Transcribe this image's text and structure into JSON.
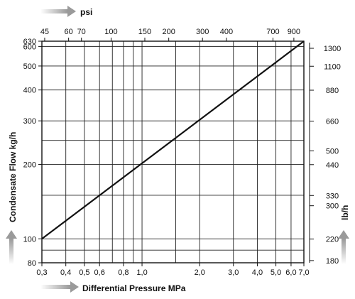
{
  "chart_data": {
    "type": "line",
    "xlabel": "Differential Pressure MPa",
    "x2label": "psi",
    "ylabel": "Condensate Flow kg/h",
    "y2label": "lb/h",
    "x_scale": "log",
    "y_scale": "log",
    "xlim": [
      0.3,
      7.0
    ],
    "ylim": [
      80,
      630
    ],
    "x_ticks": [
      {
        "v": 0.3,
        "label": "0,3"
      },
      {
        "v": 0.4,
        "label": "0,4"
      },
      {
        "v": 0.5,
        "label": "0,5"
      },
      {
        "v": 0.6,
        "label": "0,6"
      },
      {
        "v": 0.8,
        "label": "0,8"
      },
      {
        "v": 1.0,
        "label": "1,0"
      },
      {
        "v": 2.0,
        "label": "2,0"
      },
      {
        "v": 3.0,
        "label": "3,0"
      },
      {
        "v": 4.0,
        "label": "4,0"
      },
      {
        "v": 5.0,
        "label": "5,0"
      },
      {
        "v": 6.0,
        "label": "6,0"
      },
      {
        "v": 7.0,
        "label": "7,0"
      }
    ],
    "x_gridlines": [
      0.3,
      0.4,
      0.5,
      0.6,
      0.7,
      0.8,
      0.9,
      1.0,
      1.5,
      2.0,
      3.0,
      4.0,
      5.0,
      6.0,
      7.0
    ],
    "x2_ticks": [
      {
        "v": 45,
        "label": "45"
      },
      {
        "v": 60,
        "label": "60"
      },
      {
        "v": 70,
        "label": "70"
      },
      {
        "v": 100,
        "label": "100"
      },
      {
        "v": 150,
        "label": "150"
      },
      {
        "v": 200,
        "label": "200"
      },
      {
        "v": 300,
        "label": "300"
      },
      {
        "v": 400,
        "label": "400"
      },
      {
        "v": 700,
        "label": "700"
      },
      {
        "v": 900,
        "label": "900"
      }
    ],
    "y_ticks": [
      {
        "v": 80,
        "label": "80"
      },
      {
        "v": 100,
        "label": "100"
      },
      {
        "v": 200,
        "label": "200"
      },
      {
        "v": 300,
        "label": "300"
      },
      {
        "v": 400,
        "label": "400"
      },
      {
        "v": 500,
        "label": "500"
      },
      {
        "v": 600,
        "label": "600"
      },
      {
        "v": 630,
        "label": "630"
      }
    ],
    "y_gridlines": [
      90,
      100,
      150,
      200,
      250,
      300,
      400,
      500,
      600
    ],
    "y2_ticks": [
      {
        "v": 1300,
        "label": "1300"
      },
      {
        "v": 1100,
        "label": "1100"
      },
      {
        "v": 880,
        "label": "880"
      },
      {
        "v": 660,
        "label": "660"
      },
      {
        "v": 500,
        "label": "500"
      },
      {
        "v": 440,
        "label": "440"
      },
      {
        "v": 330,
        "label": "330"
      },
      {
        "v": 300,
        "label": "300"
      },
      {
        "v": 220,
        "label": "220"
      },
      {
        "v": 180,
        "label": "180"
      }
    ],
    "series": [
      {
        "x": [
          0.3,
          7.0
        ],
        "y": [
          100,
          630
        ]
      }
    ]
  }
}
